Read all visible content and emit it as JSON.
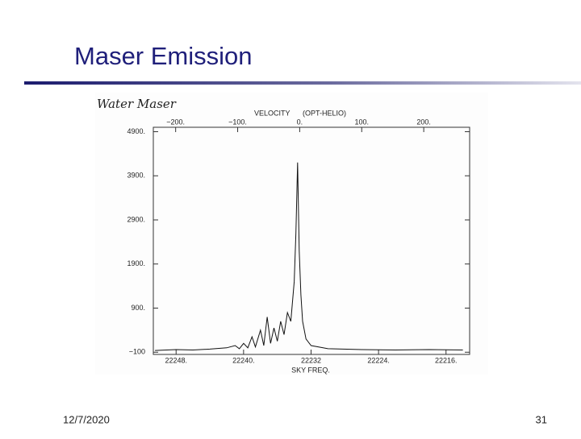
{
  "slide": {
    "title": "Maser Emission",
    "date": "12/7/2020",
    "page_number": 31
  },
  "chart_data": {
    "type": "line",
    "annotation": "Water Maser",
    "top_axis_label": "VELOCITY",
    "top_axis_note": "(OPT-HELIO)",
    "xlabel": "SKY FREQ.",
    "color": "#111111",
    "x": [
      22250.5,
      22248,
      22246,
      22244,
      22242,
      22241,
      22240.5,
      22240,
      22239.5,
      22239,
      22238.6,
      22238,
      22237.6,
      22237.2,
      22236.8,
      22236.4,
      22236,
      22235.6,
      22235.2,
      22234.8,
      22234.4,
      22234,
      22233.8,
      22233.6,
      22233.4,
      22233.2,
      22233,
      22232.6,
      22232,
      22230,
      22226,
      22222,
      22218,
      22214
    ],
    "values": [
      -60,
      -40,
      -50,
      -30,
      0,
      50,
      -20,
      100,
      0,
      250,
      20,
      400,
      50,
      700,
      100,
      450,
      150,
      600,
      300,
      800,
      600,
      1500,
      2600,
      4200,
      2200,
      1200,
      600,
      200,
      50,
      -20,
      -40,
      -50,
      -40,
      -50
    ],
    "xlim": [
      22250.7,
      22213.2
    ],
    "xticks": [
      {
        "value": 22248,
        "label": "22248."
      },
      {
        "value": 22240,
        "label": "22240."
      },
      22232,
      {
        "value": 22224,
        "label": "22224."
      },
      {
        "value": 22216,
        "label": "22216."
      }
    ],
    "x2lim": [
      -236,
      274
    ],
    "x2ticks": [
      {
        "value": -200,
        "label": "−200."
      },
      {
        "value": -100,
        "label": "−100."
      },
      {
        "value": 0,
        "label": "0."
      },
      {
        "value": 100,
        "label": "100."
      },
      {
        "value": 200,
        "label": "200."
      }
    ],
    "ylim": [
      -150,
      5000
    ],
    "yticks": [
      {
        "value": 4900,
        "label": "4900."
      },
      {
        "value": 3900,
        "label": "3900."
      },
      {
        "value": 2900,
        "label": "2900."
      },
      {
        "value": 1900,
        "label": "1900."
      },
      {
        "value": 900,
        "label": "900."
      },
      {
        "value": -100,
        "label": "−100"
      }
    ]
  }
}
